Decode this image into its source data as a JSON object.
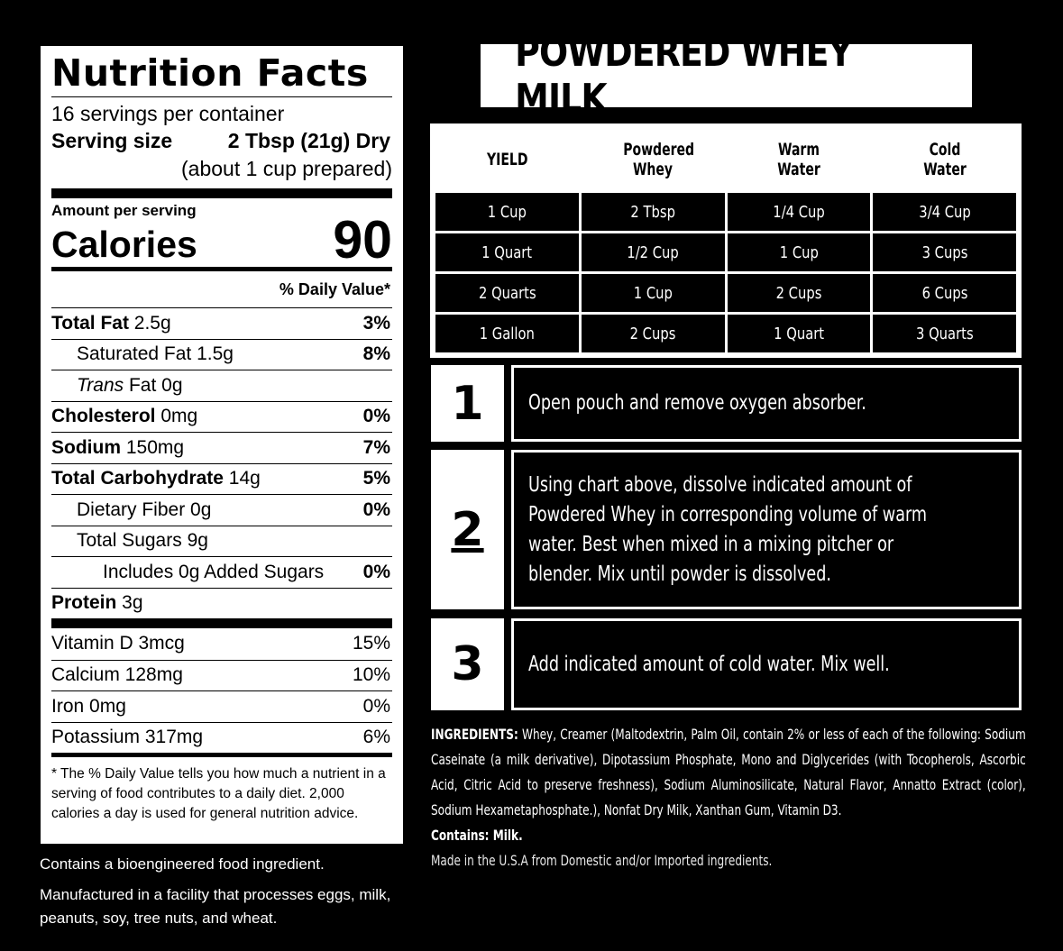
{
  "nutrition": {
    "title": "Nutrition Facts",
    "servings": "16 servings per container",
    "serving_size_label": "Serving size",
    "serving_size_value": "2 Tbsp (21g) Dry",
    "prepared": "(about 1 cup prepared)",
    "amount_per": "Amount per serving",
    "calories_label": "Calories",
    "calories_value": "90",
    "dv_header": "% Daily Value*",
    "total_fat_label": "Total Fat",
    "total_fat_amount": " 2.5g",
    "total_fat_pct": "3%",
    "sat_fat": "Saturated Fat 1.5g",
    "sat_fat_pct": "8%",
    "trans_label": "Trans",
    "trans_rest": " Fat 0g",
    "cholesterol_label": "Cholesterol",
    "cholesterol_amount": " 0mg",
    "cholesterol_pct": "0%",
    "sodium_label": "Sodium",
    "sodium_amount": " 150mg",
    "sodium_pct": "7%",
    "carb_label": "Total Carbohydrate",
    "carb_amount": " 14g",
    "carb_pct": "5%",
    "fiber": "Dietary Fiber 0g",
    "fiber_pct": "0%",
    "sugars": "Total Sugars 9g",
    "added_sugars": "Includes 0g Added Sugars",
    "added_sugars_pct": "0%",
    "protein_label": "Protein",
    "protein_amount": " 3g",
    "vitamin_d": "Vitamin D 3mcg",
    "vitamin_d_pct": "15%",
    "calcium": "Calcium 128mg",
    "calcium_pct": "10%",
    "iron": "Iron 0mg",
    "iron_pct": "0%",
    "potassium": "Potassium 317mg",
    "potassium_pct": "6%",
    "footnote": "* The % Daily Value tells you how much a nutrient in a serving of food contributes to a daily diet. 2,000 calories a day is used for general nutrition advice."
  },
  "bioengineered": "Contains a bioengineered food ingredient.",
  "facility": "Manufactured in a facility that processes eggs, milk, peanuts, soy, tree nuts, and wheat.",
  "product_title": "POWDERED WHEY MILK",
  "yield_table": {
    "headers": [
      "YIELD",
      "Powdered Whey",
      "Warm Water",
      "Cold Water"
    ],
    "rows": [
      [
        "1 Cup",
        "2 Tbsp",
        "1/4 Cup",
        "3/4 Cup"
      ],
      [
        "1 Quart",
        "1/2 Cup",
        "1 Cup",
        "3 Cups"
      ],
      [
        "2 Quarts",
        "1 Cup",
        "2 Cups",
        "6 Cups"
      ],
      [
        "1 Gallon",
        "2 Cups",
        "1 Quart",
        "3 Quarts"
      ]
    ]
  },
  "steps": [
    {
      "number": "1",
      "text": "Open pouch and remove oxygen absorber."
    },
    {
      "number": "2",
      "text": "Using chart above, dissolve indicated amount of Powdered Whey in corresponding volume of warm water. Best when mixed in a mixing pitcher or blender. Mix until powder is dissolved."
    },
    {
      "number": "3",
      "text": "Add indicated amount of cold water. Mix well."
    }
  ],
  "ingredients": {
    "label": "INGREDIENTS:",
    "text": " Whey, Creamer (Maltodextrin, Palm Oil, contain 2% or less of each of the following: Sodium Caseinate (a milk derivative), Dipotassium Phosphate, Mono and Diglycerides (with Tocopherols, Ascorbic Acid, Citric Acid to preserve freshness), Sodium Aluminosilicate, Natural Flavor, Annatto Extract (color), Sodium Hexametaphosphate.), Nonfat Dry Milk, Xanthan Gum, Vitamin D3.",
    "contains": "Contains: Milk.",
    "made_in": "Made in the U.S.A from Domestic and/or Imported ingredients."
  }
}
